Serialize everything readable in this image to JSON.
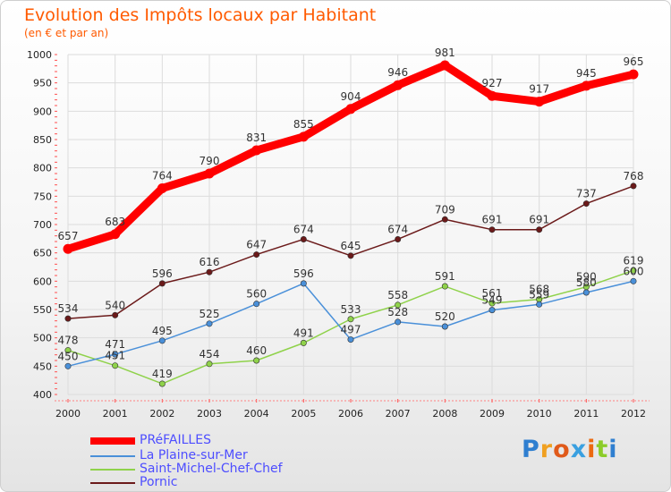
{
  "title": "Evolution des Impôts locaux par Habitant",
  "subtitle": "(en € et par an)",
  "logo": "Proxiti",
  "chart_data": {
    "type": "line",
    "x": [
      "2000",
      "2001",
      "2002",
      "2003",
      "2004",
      "2005",
      "2006",
      "2007",
      "2008",
      "2009",
      "2010",
      "2011",
      "2012"
    ],
    "ylim": [
      400,
      1000
    ],
    "yticks": [
      400,
      450,
      500,
      550,
      600,
      650,
      700,
      750,
      800,
      850,
      900,
      950,
      1000
    ],
    "grid": true,
    "legend_position": "bottom-left",
    "series": [
      {
        "name": "PRéFAILLES",
        "color": "#ff0000",
        "values": [
          657,
          683,
          764,
          790,
          831,
          855,
          904,
          946,
          981,
          927,
          917,
          945,
          965
        ]
      },
      {
        "name": "La Plaine-sur-Mer",
        "color": "#4a90d9",
        "values": [
          450,
          471,
          495,
          525,
          560,
          596,
          497,
          528,
          520,
          549,
          559,
          580,
          600
        ]
      },
      {
        "name": "Saint-Michel-Chef-Chef",
        "color": "#8fd24a",
        "values": [
          478,
          451,
          419,
          454,
          460,
          491,
          533,
          558,
          591,
          561,
          568,
          590,
          619
        ]
      },
      {
        "name": "Pornic",
        "color": "#6b1a1a",
        "values": [
          534,
          540,
          596,
          616,
          647,
          674,
          645,
          674,
          709,
          691,
          691,
          737,
          768
        ]
      }
    ]
  }
}
